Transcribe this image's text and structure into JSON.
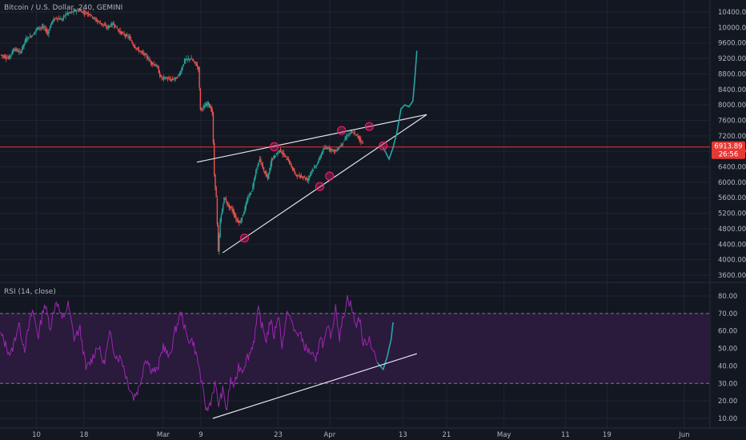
{
  "chart_data": [
    {
      "type": "candlestick",
      "title": "Bitcoin / U.S. Dollar, 240, GEMINI",
      "ylim": [
        3400,
        10700
      ],
      "yticks": [
        "10400.00",
        "10000.00",
        "9600.00",
        "9200.00",
        "8800.00",
        "8400.00",
        "8000.00",
        "7600.00",
        "7200.00",
        "6800.00",
        "6400.00",
        "6000.00",
        "5600.00",
        "5200.00",
        "4800.00",
        "4400.00",
        "4000.00",
        "3600.00"
      ],
      "ytick_values": [
        10400,
        10000,
        9600,
        9200,
        8800,
        8400,
        8000,
        7600,
        7200,
        6800,
        6400,
        6000,
        5600,
        5200,
        4800,
        4400,
        4000,
        3600
      ],
      "last_price": 6913.89,
      "last_price_label": "6913.89",
      "countdown_label": "26:56",
      "price_path": [
        [
          0,
          9300
        ],
        [
          4,
          9200
        ],
        [
          7,
          9450
        ],
        [
          10,
          9350
        ],
        [
          13,
          9700
        ],
        [
          16,
          9800
        ],
        [
          19,
          10000
        ],
        [
          22,
          10000
        ],
        [
          24,
          9850
        ],
        [
          26,
          10150
        ],
        [
          28,
          10250
        ],
        [
          31,
          10200
        ],
        [
          33,
          10350
        ],
        [
          36,
          10400
        ],
        [
          39,
          10450
        ],
        [
          42,
          10400
        ],
        [
          45,
          10350
        ],
        [
          48,
          10200
        ],
        [
          51,
          10100
        ],
        [
          54,
          10000
        ],
        [
          57,
          10100
        ],
        [
          60,
          9900
        ],
        [
          63,
          9800
        ],
        [
          65,
          9750
        ],
        [
          67,
          9550
        ],
        [
          70,
          9400
        ],
        [
          73,
          9300
        ],
        [
          76,
          9100
        ],
        [
          79,
          9000
        ],
        [
          81,
          8700
        ],
        [
          83,
          8700
        ],
        [
          86,
          8650
        ],
        [
          89,
          8700
        ],
        [
          91,
          8850
        ],
        [
          93,
          9150
        ],
        [
          96,
          9200
        ],
        [
          98,
          9100
        ],
        [
          100,
          8950
        ],
        [
          101,
          7900
        ],
        [
          103,
          7950
        ],
        [
          105,
          8050
        ],
        [
          107,
          7800
        ],
        [
          108,
          6200
        ],
        [
          109,
          5600
        ],
        [
          110,
          4200
        ],
        [
          111,
          5000
        ],
        [
          113,
          5600
        ],
        [
          115,
          5400
        ],
        [
          117,
          5300
        ],
        [
          119,
          5050
        ],
        [
          121,
          4950
        ],
        [
          123,
          5250
        ],
        [
          125,
          5600
        ],
        [
          127,
          5800
        ],
        [
          129,
          6300
        ],
        [
          131,
          6600
        ],
        [
          133,
          6300
        ],
        [
          135,
          6100
        ],
        [
          137,
          6600
        ],
        [
          139,
          6700
        ],
        [
          141,
          6850
        ],
        [
          143,
          6700
        ],
        [
          145,
          6600
        ],
        [
          147,
          6400
        ],
        [
          149,
          6200
        ],
        [
          151,
          6150
        ],
        [
          153,
          6150
        ],
        [
          155,
          6050
        ],
        [
          157,
          6300
        ],
        [
          159,
          6400
        ],
        [
          161,
          6600
        ],
        [
          163,
          6850
        ],
        [
          165,
          6900
        ],
        [
          167,
          6850
        ],
        [
          169,
          6800
        ],
        [
          171,
          6900
        ],
        [
          173,
          7050
        ],
        [
          175,
          7200
        ],
        [
          177,
          7300
        ],
        [
          179,
          7250
        ],
        [
          181,
          7150
        ],
        [
          183,
          7000
        ]
      ],
      "key_points": [
        [
          123,
          4560
        ],
        [
          138,
          6920
        ],
        [
          161,
          5890
        ],
        [
          166,
          6160
        ],
        [
          172,
          7340
        ],
        [
          186,
          7440
        ],
        [
          193,
          6940
        ]
      ],
      "wedge_upper": [
        [
          99,
          6520
        ],
        [
          215,
          7750
        ]
      ],
      "wedge_lower": [
        [
          112,
          4180
        ],
        [
          215,
          7750
        ]
      ],
      "horizontal_line": 6913,
      "projection": [
        [
          193,
          6900
        ],
        [
          196,
          6600
        ],
        [
          198,
          6900
        ],
        [
          200,
          7300
        ],
        [
          202,
          7900
        ],
        [
          204,
          8000
        ],
        [
          206,
          7950
        ],
        [
          208,
          8100
        ],
        [
          209,
          8700
        ],
        [
          210,
          9400
        ]
      ]
    },
    {
      "type": "line",
      "title": "RSI (14, close)",
      "ylim": [
        5,
        85
      ],
      "band": [
        30,
        70
      ],
      "yticks": [
        "80.00",
        "70.00",
        "60.00",
        "50.00",
        "40.00",
        "30.00",
        "20.00",
        "10.00"
      ],
      "ytick_values": [
        80,
        70,
        60,
        50,
        40,
        30,
        20,
        10
      ],
      "rsi_path": [
        [
          0,
          58
        ],
        [
          5,
          46
        ],
        [
          9,
          64
        ],
        [
          12,
          50
        ],
        [
          16,
          72
        ],
        [
          19,
          57
        ],
        [
          22,
          76
        ],
        [
          25,
          62
        ],
        [
          28,
          78
        ],
        [
          31,
          66
        ],
        [
          34,
          75
        ],
        [
          37,
          56
        ],
        [
          40,
          61
        ],
        [
          43,
          38
        ],
        [
          46,
          44
        ],
        [
          49,
          52
        ],
        [
          52,
          41
        ],
        [
          55,
          58
        ],
        [
          58,
          46
        ],
        [
          61,
          44
        ],
        [
          64,
          31
        ],
        [
          67,
          22
        ],
        [
          70,
          28
        ],
        [
          73,
          45
        ],
        [
          76,
          38
        ],
        [
          79,
          37
        ],
        [
          82,
          52
        ],
        [
          85,
          44
        ],
        [
          88,
          60
        ],
        [
          91,
          71
        ],
        [
          94,
          56
        ],
        [
          97,
          54
        ],
        [
          100,
          40
        ],
        [
          102,
          25
        ],
        [
          104,
          14
        ],
        [
          106,
          20
        ],
        [
          108,
          30
        ],
        [
          110,
          18
        ],
        [
          112,
          26
        ],
        [
          114,
          15
        ],
        [
          116,
          32
        ],
        [
          118,
          28
        ],
        [
          120,
          40
        ],
        [
          122,
          38
        ],
        [
          124,
          44
        ],
        [
          126,
          48
        ],
        [
          128,
          56
        ],
        [
          130,
          72
        ],
        [
          132,
          62
        ],
        [
          134,
          55
        ],
        [
          136,
          66
        ],
        [
          138,
          57
        ],
        [
          140,
          70
        ],
        [
          142,
          52
        ],
        [
          145,
          72
        ],
        [
          148,
          60
        ],
        [
          151,
          58
        ],
        [
          154,
          50
        ],
        [
          157,
          47
        ],
        [
          159,
          41
        ],
        [
          161,
          57
        ],
        [
          163,
          52
        ],
        [
          165,
          61
        ],
        [
          167,
          57
        ],
        [
          169,
          75
        ],
        [
          171,
          56
        ],
        [
          173,
          69
        ],
        [
          175,
          79
        ],
        [
          177,
          74
        ],
        [
          179,
          63
        ],
        [
          181,
          68
        ],
        [
          183,
          52
        ],
        [
          186,
          56
        ],
        [
          190,
          42
        ]
      ],
      "rsi_projection": [
        [
          190,
          42
        ],
        [
          193,
          38
        ],
        [
          195,
          45
        ],
        [
          197,
          55
        ],
        [
          198,
          65
        ]
      ],
      "trendline": [
        [
          107,
          10
        ],
        [
          210,
          47
        ]
      ]
    }
  ],
  "x_axis": {
    "labels": [
      "10",
      "18",
      "Mar",
      "9",
      "23",
      "Apr",
      "13",
      "21",
      "May",
      "11",
      "19",
      "Jun"
    ],
    "positions": [
      18,
      42,
      82,
      101,
      140,
      166,
      203,
      225,
      254,
      285,
      306,
      345
    ]
  },
  "colors": {
    "background": "#131722",
    "grid": "#1f2433",
    "candle_up": "#26a69a",
    "candle_down": "#ef5350",
    "annotation": "#e0e3eb",
    "projection": "#26a6a6",
    "rsi": "#9c27b0",
    "rsi_band": "#2a1a3c",
    "price_line": "#e53935"
  }
}
